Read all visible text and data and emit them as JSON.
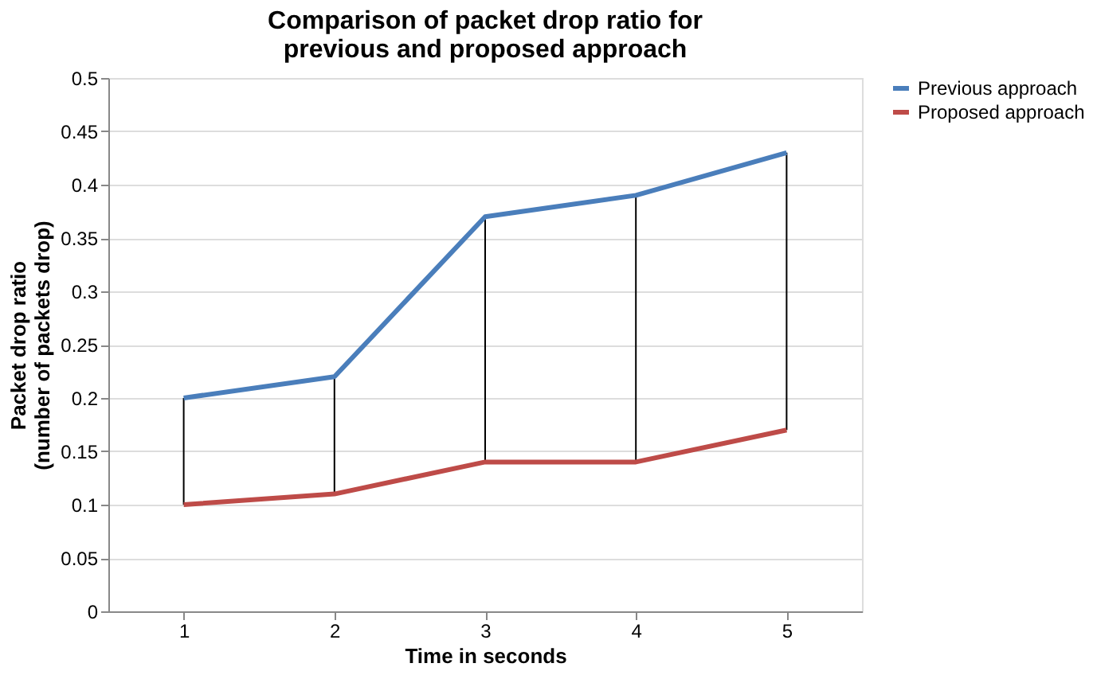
{
  "chart_data": {
    "type": "line",
    "title": "Comparison of packet drop ratio for\nprevious and proposed approach",
    "xlabel": "Time in seconds",
    "ylabel": "Packet drop ratio\n(number of packets  drop)",
    "categories": [
      "1",
      "2",
      "3",
      "4",
      "5"
    ],
    "series": [
      {
        "name": "Previous approach",
        "color": "#4a7ebb",
        "values": [
          0.2,
          0.22,
          0.37,
          0.39,
          0.43
        ],
        "errors": [
          [
            0.1,
            0.2
          ],
          [
            0.11,
            0.22
          ],
          [
            0.14,
            0.37
          ],
          [
            0.14,
            0.39
          ],
          [
            0.17,
            0.43
          ]
        ]
      },
      {
        "name": "Proposed approach",
        "color": "#be4b48",
        "values": [
          0.1,
          0.11,
          0.14,
          0.14,
          0.17
        ]
      }
    ],
    "ylim": [
      0,
      0.5
    ],
    "yticks": [
      0,
      0.05,
      0.1,
      0.15,
      0.2,
      0.25,
      0.3,
      0.35,
      0.4,
      0.45,
      0.5
    ],
    "grid": "y",
    "legend": "right",
    "marker": "none",
    "line_style": "solid"
  }
}
